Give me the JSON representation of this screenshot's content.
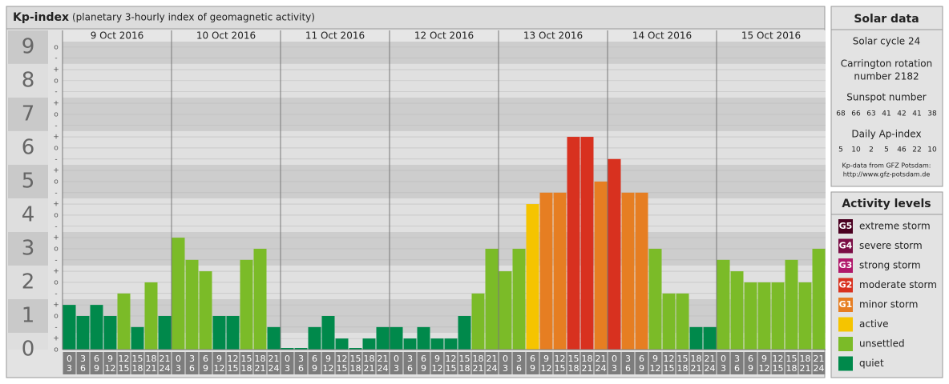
{
  "chart_data": {
    "type": "bar",
    "title": "Kp-index",
    "subtitle": "(planetary 3-hourly index of geomagnetic activity)",
    "days": [
      "9 Oct 2016",
      "10 Oct 2016",
      "11 Oct 2016",
      "12 Oct 2016",
      "13 Oct 2016",
      "14 Oct 2016",
      "15 Oct 2016"
    ],
    "hour_labels": [
      [
        "0",
        "3"
      ],
      [
        "3",
        "6"
      ],
      [
        "6",
        "9"
      ],
      [
        "9",
        "12"
      ],
      [
        "12",
        "15"
      ],
      [
        "15",
        "18"
      ],
      [
        "18",
        "21"
      ],
      [
        "21",
        "24"
      ]
    ],
    "values": [
      1.33,
      1,
      1.33,
      1,
      1.67,
      0.67,
      2,
      1,
      3.33,
      2.67,
      2.33,
      1,
      1,
      2.67,
      3,
      0.67,
      0,
      0,
      0.67,
      1,
      0.33,
      0,
      0.33,
      0.67,
      0.67,
      0.33,
      0.67,
      0.33,
      0.33,
      1,
      1.67,
      3,
      2.33,
      3,
      4.33,
      4.67,
      4.67,
      6.33,
      6.33,
      5,
      5.67,
      4.67,
      4.67,
      3,
      1.67,
      1.67,
      0.67,
      0.67,
      2.67,
      2.33,
      2,
      2,
      2,
      2.67,
      2,
      3
    ],
    "colors": [
      "#00894b",
      "#00894b",
      "#00894b",
      "#00894b",
      "#7bbb28",
      "#00894b",
      "#7bbb28",
      "#00894b",
      "#7bbb28",
      "#7bbb28",
      "#7bbb28",
      "#00894b",
      "#00894b",
      "#7bbb28",
      "#7bbb28",
      "#00894b",
      "#00894b",
      "#00894b",
      "#00894b",
      "#00894b",
      "#00894b",
      "#00894b",
      "#00894b",
      "#00894b",
      "#00894b",
      "#00894b",
      "#00894b",
      "#00894b",
      "#00894b",
      "#00894b",
      "#7bbb28",
      "#7bbb28",
      "#7bbb28",
      "#7bbb28",
      "#f5c400",
      "#e67e22",
      "#e67e22",
      "#d8311f",
      "#d8311f",
      "#e67e22",
      "#d8311f",
      "#e67e22",
      "#e67e22",
      "#7bbb28",
      "#7bbb28",
      "#7bbb28",
      "#00894b",
      "#00894b",
      "#7bbb28",
      "#7bbb28",
      "#7bbb28",
      "#7bbb28",
      "#7bbb28",
      "#7bbb28",
      "#7bbb28",
      "#7bbb28"
    ],
    "ylim": [
      0,
      9.33
    ],
    "yticks": [
      0,
      1,
      2,
      3,
      4,
      5,
      6,
      7,
      8,
      9
    ],
    "minor_yticks": [
      {
        "value": 0,
        "label": "o"
      },
      {
        "value": 0.33,
        "label": "+"
      },
      {
        "value": 0.67,
        "label": "-"
      },
      {
        "value": 1,
        "label": "o"
      },
      {
        "value": 1.33,
        "label": "+"
      },
      {
        "value": 1.67,
        "label": "-"
      },
      {
        "value": 2,
        "label": "o"
      },
      {
        "value": 2.33,
        "label": "+"
      },
      {
        "value": 2.67,
        "label": "-"
      },
      {
        "value": 3,
        "label": "o"
      },
      {
        "value": 3.33,
        "label": "+"
      },
      {
        "value": 3.67,
        "label": "-"
      },
      {
        "value": 4,
        "label": "o"
      },
      {
        "value": 4.33,
        "label": "+"
      },
      {
        "value": 4.67,
        "label": "-"
      },
      {
        "value": 5,
        "label": "o"
      },
      {
        "value": 5.33,
        "label": "+"
      },
      {
        "value": 5.67,
        "label": "-"
      },
      {
        "value": 6,
        "label": "o"
      },
      {
        "value": 6.33,
        "label": "+"
      },
      {
        "value": 6.67,
        "label": "-"
      },
      {
        "value": 7,
        "label": "o"
      },
      {
        "value": 7.33,
        "label": "+"
      },
      {
        "value": 7.67,
        "label": "-"
      },
      {
        "value": 8,
        "label": "o"
      },
      {
        "value": 8.33,
        "label": "+"
      },
      {
        "value": 8.67,
        "label": "-"
      },
      {
        "value": 9,
        "label": "o"
      }
    ]
  },
  "solar": {
    "title": "Solar data",
    "cycle": "Solar cycle 24",
    "carrington": [
      "Carrington rotation",
      "number 2182"
    ],
    "sunspot_title": "Sunspot number",
    "sunspots": [
      68,
      66,
      63,
      41,
      42,
      41,
      38
    ],
    "ap_title": "Daily Ap-index",
    "ap": [
      5,
      10,
      2,
      5,
      46,
      22,
      10
    ],
    "source": [
      "Kp-data from GFZ Potsdam:",
      "http://www.gfz-potsdam.de"
    ]
  },
  "levels": {
    "title": "Activity levels",
    "items": [
      {
        "code": "G5",
        "label": "extreme storm",
        "color": "#4a0020"
      },
      {
        "code": "G4",
        "label": "severe storm",
        "color": "#7a0d45"
      },
      {
        "code": "G3",
        "label": "strong storm",
        "color": "#b0186a"
      },
      {
        "code": "G2",
        "label": "moderate storm",
        "color": "#d8311f"
      },
      {
        "code": "G1",
        "label": "minor storm",
        "color": "#e67e22"
      },
      {
        "code": null,
        "label": "active",
        "color": "#f5c400"
      },
      {
        "code": null,
        "label": "unsettled",
        "color": "#7bbb28"
      },
      {
        "code": null,
        "label": "quiet",
        "color": "#00894b"
      }
    ]
  }
}
